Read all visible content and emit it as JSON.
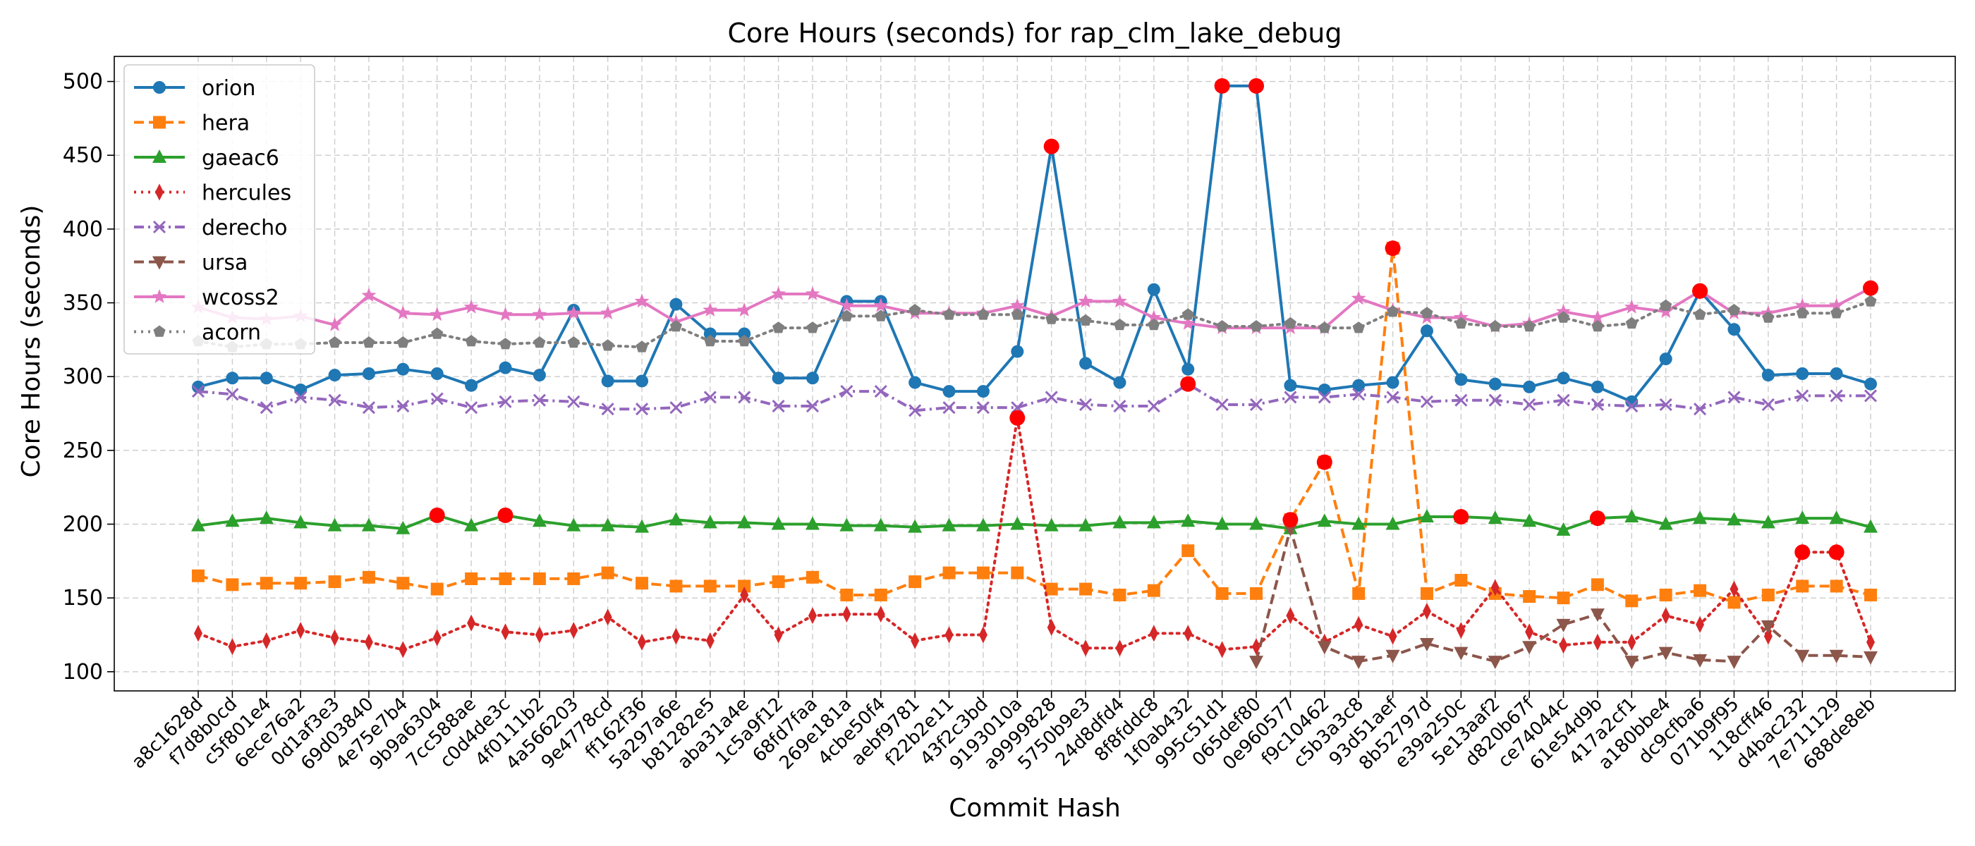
{
  "chart_data": {
    "type": "line",
    "title": "Core Hours (seconds) for rap_clm_lake_debug",
    "xlabel": "Commit Hash",
    "ylabel": "Core Hours (seconds)",
    "ylim": [
      87,
      517
    ],
    "yticks": [
      100,
      150,
      200,
      250,
      300,
      350,
      400,
      450,
      500
    ],
    "grid": true,
    "legend_position": "top-left",
    "categories": [
      "a8c1628d",
      "f7d8b0cd",
      "c5f801e4",
      "6ece76a2",
      "0d1af3e3",
      "69d03840",
      "4e75e7b4",
      "9b9a6304",
      "7cc588ae",
      "c0d4de3c",
      "4f0111b2",
      "4a566203",
      "9e4778cd",
      "ff162f36",
      "5a297a6e",
      "b81282e5",
      "aba31a4e",
      "1c5a9f12",
      "68fd7faa",
      "269e181a",
      "4cbe50f4",
      "aebf9781",
      "f22b2e11",
      "43f2c3bd",
      "9193010a",
      "a9999828",
      "5750b9e3",
      "24d8dfd4",
      "8f8fddc8",
      "1f0ab432",
      "995c51d1",
      "065def80",
      "0e960577",
      "f9c10462",
      "c5b3a3c8",
      "93d51aef",
      "8b52797d",
      "e39a250c",
      "5e13aaf2",
      "d820b67f",
      "ce74044c",
      "61e54d9b",
      "417a2cf1",
      "a180bbe4",
      "dc9cfba6",
      "071b9f95",
      "118cff46",
      "d4bac232",
      "7e711129",
      "688de8eb"
    ],
    "series": [
      {
        "name": "orion",
        "color": "#1f77b4",
        "style": "solid",
        "marker": "circle",
        "values": [
          293,
          299,
          299,
          291,
          301,
          302,
          305,
          302,
          294,
          306,
          301,
          345,
          297,
          297,
          349,
          329,
          329,
          299,
          299,
          351,
          351,
          296,
          290,
          290,
          317,
          456,
          309,
          296,
          359,
          305,
          497,
          497,
          294,
          291,
          294,
          296,
          331,
          298,
          295,
          293,
          299,
          293,
          283,
          312,
          358,
          332,
          301,
          302,
          302,
          295
        ],
        "outliers": [
          25,
          30,
          31,
          44
        ]
      },
      {
        "name": "hera",
        "color": "#ff7f0e",
        "style": "dashed",
        "marker": "square",
        "values": [
          165,
          159,
          160,
          160,
          161,
          164,
          160,
          156,
          163,
          163,
          163,
          163,
          167,
          160,
          158,
          158,
          158,
          161,
          164,
          152,
          152,
          161,
          167,
          167,
          167,
          156,
          156,
          152,
          155,
          182,
          153,
          153,
          203,
          242,
          153,
          387,
          153,
          162,
          153,
          151,
          150,
          159,
          148,
          152,
          155,
          147,
          152,
          158,
          158,
          152
        ],
        "outliers": [
          32,
          33,
          35
        ]
      },
      {
        "name": "gaeac6",
        "color": "#2ca02c",
        "style": "solid",
        "marker": "triangle-up",
        "values": [
          199,
          202,
          204,
          201,
          199,
          199,
          197,
          206,
          199,
          206,
          202,
          199,
          199,
          198,
          203,
          201,
          201,
          200,
          200,
          199,
          199,
          198,
          199,
          199,
          200,
          199,
          199,
          201,
          201,
          202,
          200,
          200,
          197,
          202,
          200,
          200,
          205,
          205,
          204,
          202,
          196,
          204,
          205,
          200,
          204,
          203,
          201,
          204,
          204,
          198
        ],
        "outliers": [
          7,
          9,
          37,
          41
        ]
      },
      {
        "name": "hercules",
        "color": "#d62728",
        "style": "dotted",
        "marker": "diamond",
        "values": [
          126,
          117,
          121,
          128,
          123,
          120,
          115,
          123,
          133,
          127,
          125,
          128,
          137,
          120,
          124,
          121,
          152,
          125,
          138,
          139,
          139,
          121,
          125,
          125,
          272,
          130,
          116,
          116,
          126,
          126,
          115,
          117,
          138,
          120,
          132,
          124,
          141,
          128,
          157,
          127,
          118,
          120,
          120,
          138,
          132,
          156,
          124,
          181,
          181,
          120
        ],
        "outliers": [
          24,
          47,
          48
        ]
      },
      {
        "name": "derecho",
        "color": "#9467bd",
        "style": "dashdot",
        "marker": "x",
        "values": [
          290,
          288,
          279,
          286,
          284,
          279,
          280,
          285,
          279,
          283,
          284,
          283,
          278,
          278,
          279,
          286,
          286,
          280,
          280,
          290,
          290,
          277,
          279,
          279,
          279,
          286,
          281,
          280,
          280,
          295,
          281,
          281,
          286,
          286,
          288,
          286,
          283,
          284,
          284,
          281,
          284,
          281,
          280,
          281,
          278,
          286,
          281,
          287,
          287,
          287
        ],
        "outliers": [
          29
        ]
      },
      {
        "name": "ursa",
        "color": "#8c564b",
        "style": "dashed",
        "marker": "triangle-down",
        "values": [
          null,
          null,
          null,
          null,
          null,
          null,
          null,
          null,
          null,
          null,
          null,
          null,
          null,
          null,
          null,
          null,
          null,
          null,
          null,
          null,
          null,
          null,
          null,
          null,
          null,
          null,
          null,
          null,
          null,
          null,
          null,
          107,
          197,
          117,
          107,
          111,
          119,
          113,
          107,
          117,
          132,
          139,
          107,
          113,
          108,
          107,
          131,
          111,
          111,
          110
        ],
        "outliers": []
      },
      {
        "name": "wcoss2",
        "color": "#e377c2",
        "style": "solid",
        "marker": "star",
        "values": [
          347,
          340,
          339,
          341,
          335,
          355,
          343,
          342,
          347,
          342,
          342,
          343,
          343,
          351,
          337,
          345,
          345,
          356,
          356,
          348,
          348,
          343,
          343,
          343,
          348,
          341,
          351,
          351,
          340,
          336,
          333,
          333,
          333,
          333,
          353,
          345,
          340,
          340,
          334,
          336,
          344,
          340,
          347,
          344,
          358,
          343,
          343,
          348,
          348,
          360
        ],
        "outliers": [
          44,
          49
        ]
      },
      {
        "name": "acorn",
        "color": "#7f7f7f",
        "style": "dotted",
        "marker": "pentagon",
        "values": [
          324,
          320,
          322,
          322,
          323,
          323,
          323,
          329,
          324,
          322,
          323,
          323,
          321,
          320,
          334,
          324,
          324,
          333,
          333,
          341,
          341,
          345,
          342,
          342,
          342,
          339,
          338,
          335,
          335,
          342,
          334,
          334,
          336,
          333,
          333,
          344,
          343,
          336,
          334,
          334,
          340,
          334,
          336,
          348,
          342,
          345,
          340,
          343,
          343,
          351
        ],
        "outliers": []
      }
    ]
  }
}
